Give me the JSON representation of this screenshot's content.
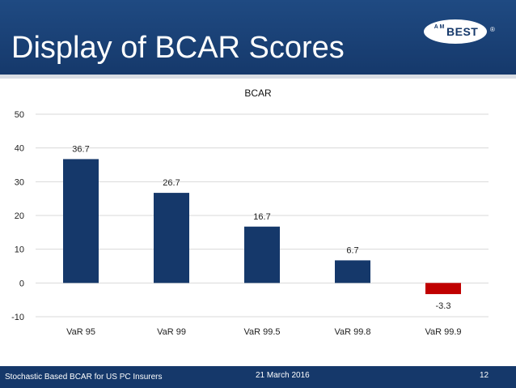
{
  "slide": {
    "title": "Display of BCAR Scores"
  },
  "logo": {
    "am_text": "A M",
    "brand_text": "BEST",
    "registered_mark": "®"
  },
  "footer": {
    "left_text": "Stochastic Based BCAR for US PC Insurers",
    "date_text": "21 March 2016",
    "page_number": "12"
  },
  "colors": {
    "header_bg": "#15386a",
    "positive_bar": "#15386a",
    "negative_bar": "#c00000",
    "grid": "#d9d9d9"
  },
  "chart_data": {
    "type": "bar",
    "title": "BCAR",
    "categories": [
      "VaR 95",
      "VaR 99",
      "VaR 99.5",
      "VaR 99.8",
      "VaR 99.9"
    ],
    "values": [
      36.7,
      26.7,
      16.7,
      6.7,
      -3.3
    ],
    "data_labels": [
      "36.7",
      "26.7",
      "16.7",
      "6.7",
      "-3.3"
    ],
    "yticks": [
      "50",
      "40",
      "30",
      "20",
      "10",
      "0",
      "-10"
    ],
    "ylim": [
      -10,
      50
    ],
    "xlabel": "",
    "ylabel": "",
    "grid": true,
    "legend": "none"
  }
}
